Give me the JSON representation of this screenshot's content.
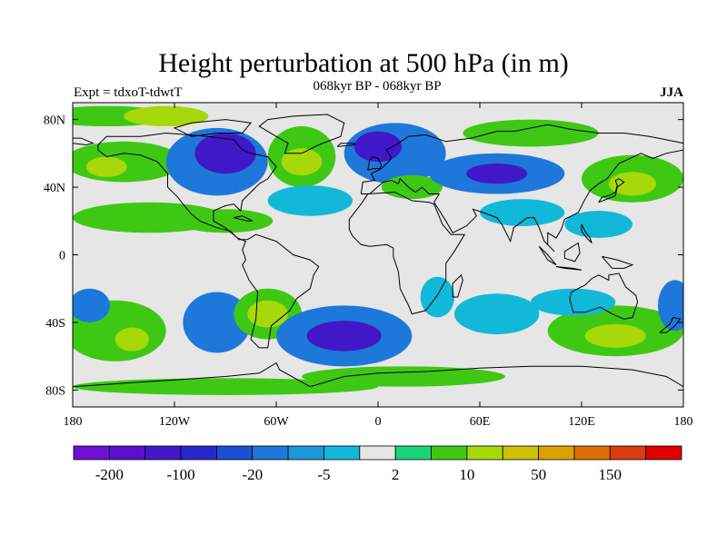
{
  "header": {
    "title": "Height perturbation at 500 hPa (in m)",
    "subtitle": "068kyr BP - 068kyr BP",
    "experiment": "Expt = tdxoT-tdwtT",
    "season": "JJA"
  },
  "map": {
    "projection": "cylindrical-equidistant",
    "lon_range": [
      -180,
      180
    ],
    "lat_range": [
      -90,
      90
    ],
    "x_ticks": [
      "180",
      "120W",
      "60W",
      "0",
      "60E",
      "120E",
      "180"
    ],
    "y_ticks": [
      "80N",
      "40N",
      "0",
      "40S",
      "80S"
    ],
    "background_color": "#e6e6e6",
    "coastline_color": "#000000",
    "units": "m"
  },
  "colorbar": {
    "colors": [
      "#6e10d6",
      "#5a10cc",
      "#4018c8",
      "#2828cc",
      "#1c50d2",
      "#1e78da",
      "#1a98d8",
      "#12b8d8",
      "#e6e6e6",
      "#1ad47c",
      "#3ec814",
      "#a6d80a",
      "#d0c008",
      "#dca000",
      "#dc6e00",
      "#dc3c10",
      "#e00000"
    ],
    "labels": [
      "-200",
      "-100",
      "-20",
      "-5",
      "2",
      "10",
      "50",
      "150"
    ]
  },
  "chart_data": {
    "type": "heatmap",
    "title": "Height perturbation at 500 hPa (in m)",
    "x_ticks": [
      "180",
      "120W",
      "60W",
      "0",
      "60E",
      "120E",
      "180"
    ],
    "y_ticks": [
      "80N",
      "40N",
      "0",
      "40S",
      "80S"
    ],
    "xlim": [
      -180,
      180
    ],
    "ylim": [
      -90,
      90
    ],
    "colorbar_labels": [
      "-200",
      "-100",
      "-20",
      "-5",
      "2",
      "10",
      "50",
      "150"
    ],
    "regions": [
      {
        "lon": -160,
        "lat": 82,
        "rx": 40,
        "ry": 6,
        "level": 10
      },
      {
        "lon": -125,
        "lat": 82,
        "rx": 25,
        "ry": 6,
        "level": 50
      },
      {
        "lon": -150,
        "lat": 55,
        "rx": 35,
        "ry": 12,
        "level": 10
      },
      {
        "lon": -160,
        "lat": 52,
        "rx": 12,
        "ry": 6,
        "level": 50
      },
      {
        "lon": -135,
        "lat": 22,
        "rx": 45,
        "ry": 9,
        "level": 10
      },
      {
        "lon": -95,
        "lat": 55,
        "rx": 30,
        "ry": 20,
        "level": -20
      },
      {
        "lon": -90,
        "lat": 60,
        "rx": 18,
        "ry": 12,
        "level": -100
      },
      {
        "lon": -45,
        "lat": 58,
        "rx": 20,
        "ry": 18,
        "level": 10
      },
      {
        "lon": -45,
        "lat": 55,
        "rx": 12,
        "ry": 8,
        "level": 50
      },
      {
        "lon": -40,
        "lat": 32,
        "rx": 25,
        "ry": 9,
        "level": -5
      },
      {
        "lon": -90,
        "lat": 20,
        "rx": 28,
        "ry": 7,
        "level": 10
      },
      {
        "lon": 10,
        "lat": 60,
        "rx": 30,
        "ry": 18,
        "level": -20
      },
      {
        "lon": 0,
        "lat": 64,
        "rx": 14,
        "ry": 9,
        "level": -100
      },
      {
        "lon": 20,
        "lat": 40,
        "rx": 18,
        "ry": 7,
        "level": 10
      },
      {
        "lon": 70,
        "lat": 48,
        "rx": 40,
        "ry": 12,
        "level": -20
      },
      {
        "lon": 70,
        "lat": 48,
        "rx": 18,
        "ry": 6,
        "level": -100
      },
      {
        "lon": 90,
        "lat": 72,
        "rx": 40,
        "ry": 8,
        "level": 10
      },
      {
        "lon": 85,
        "lat": 25,
        "rx": 25,
        "ry": 8,
        "level": -5
      },
      {
        "lon": 150,
        "lat": 45,
        "rx": 30,
        "ry": 14,
        "level": 10
      },
      {
        "lon": 150,
        "lat": 42,
        "rx": 14,
        "ry": 7,
        "level": 50
      },
      {
        "lon": 130,
        "lat": 18,
        "rx": 20,
        "ry": 8,
        "level": -5
      },
      {
        "lon": -155,
        "lat": -45,
        "rx": 30,
        "ry": 18,
        "level": 10
      },
      {
        "lon": -145,
        "lat": -50,
        "rx": 10,
        "ry": 7,
        "level": 50
      },
      {
        "lon": -170,
        "lat": -30,
        "rx": 12,
        "ry": 10,
        "level": -20
      },
      {
        "lon": -95,
        "lat": -40,
        "rx": 20,
        "ry": 18,
        "level": -20
      },
      {
        "lon": -65,
        "lat": -35,
        "rx": 20,
        "ry": 15,
        "level": 10
      },
      {
        "lon": -65,
        "lat": -35,
        "rx": 12,
        "ry": 8,
        "level": 50
      },
      {
        "lon": -20,
        "lat": -48,
        "rx": 40,
        "ry": 18,
        "level": -20
      },
      {
        "lon": -20,
        "lat": -48,
        "rx": 22,
        "ry": 9,
        "level": -100
      },
      {
        "lon": 15,
        "lat": -72,
        "rx": 60,
        "ry": 6,
        "level": 10
      },
      {
        "lon": 35,
        "lat": -25,
        "rx": 10,
        "ry": 12,
        "level": -5
      },
      {
        "lon": 70,
        "lat": -35,
        "rx": 25,
        "ry": 12,
        "level": -5
      },
      {
        "lon": 140,
        "lat": -45,
        "rx": 40,
        "ry": 15,
        "level": 10
      },
      {
        "lon": 140,
        "lat": -48,
        "rx": 18,
        "ry": 7,
        "level": 50
      },
      {
        "lon": 115,
        "lat": -28,
        "rx": 25,
        "ry": 8,
        "level": -5
      },
      {
        "lon": 175,
        "lat": -30,
        "rx": 10,
        "ry": 15,
        "level": -20
      },
      {
        "lon": -90,
        "lat": -78,
        "rx": 90,
        "ry": 5,
        "level": 10
      }
    ]
  }
}
